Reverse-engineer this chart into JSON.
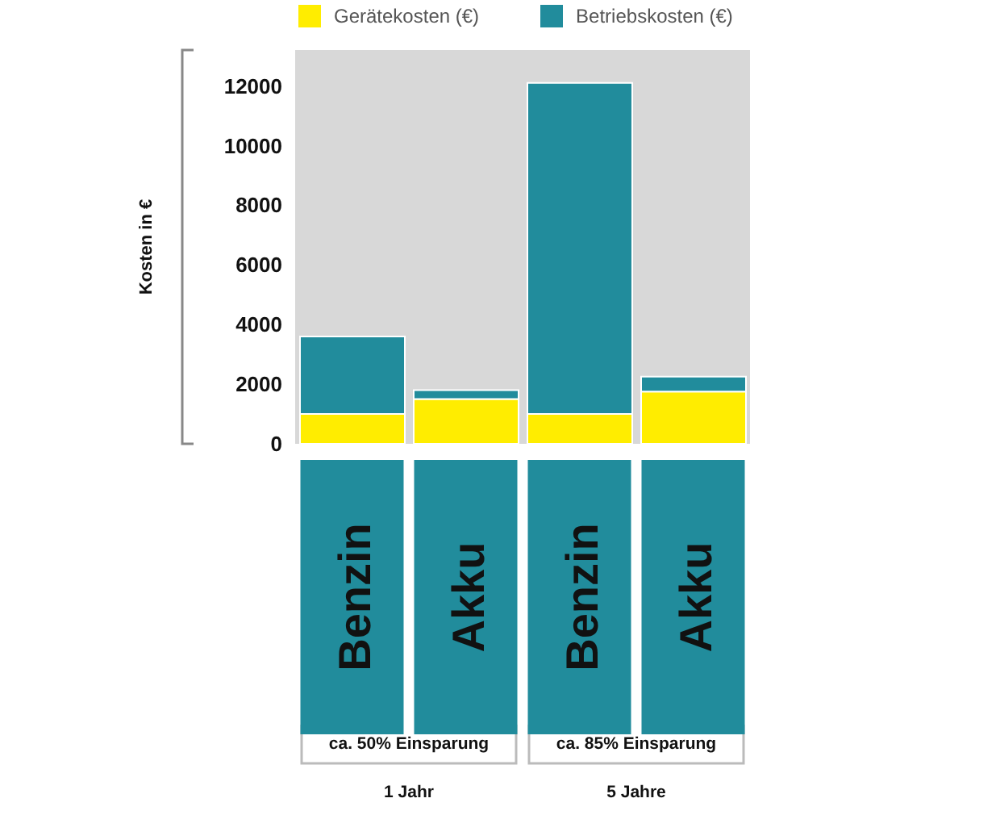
{
  "chart_data": {
    "type": "bar",
    "stacked": true,
    "ylabel": "Kosten in €",
    "categories": [
      "Benzin",
      "Akku",
      "Benzin",
      "Akku"
    ],
    "series": [
      {
        "name": "Gerätekosten (€)",
        "color": "#ffed00",
        "values": [
          1000,
          1500,
          1000,
          1750
        ]
      },
      {
        "name": "Betriebskosten (€)",
        "color": "#218c9c",
        "values": [
          2600,
          300,
          11100,
          500
        ]
      }
    ],
    "ylim": [
      0,
      13200
    ],
    "yticks": [
      0,
      2000,
      4000,
      6000,
      8000,
      10000,
      12000
    ],
    "legend": "top",
    "annotations": [
      "ca. 50% Einsparung",
      "ca. 85% Einsparung",
      "1 Jahr",
      "5 Jahre"
    ]
  }
}
